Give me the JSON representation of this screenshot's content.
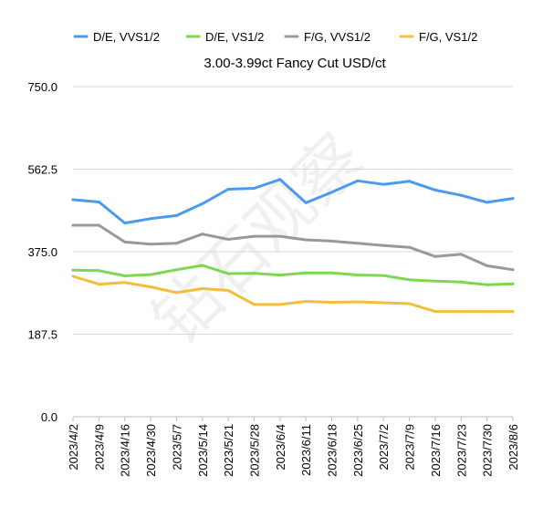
{
  "chart_data": {
    "type": "line",
    "title": "3.00-3.99ct Fancy Cut   USD/ct",
    "watermark": "钻石观察",
    "xlabel": "",
    "ylabel": "",
    "ylim": [
      0,
      750
    ],
    "yticks": [
      "0.0",
      "187.5",
      "375.0",
      "562.5",
      "750.0"
    ],
    "grid": "horizontal",
    "legend_position": "top",
    "categories": [
      "2023/4/2",
      "2023/4/9",
      "2023/4/16",
      "2023/4/30",
      "2023/5/7",
      "2023/5/14",
      "2023/5/21",
      "2023/5/28",
      "2023/6/4",
      "2023/6/11",
      "2023/6/18",
      "2023/6/25",
      "2023/7/2",
      "2023/7/9",
      "2023/7/16",
      "2023/7/23",
      "2023/7/30",
      "2023/8/6"
    ],
    "series": [
      {
        "name": "D/E, VVS1/2",
        "color": "#4a9af0",
        "values": [
          493,
          488,
          440,
          450,
          457,
          484,
          517,
          519,
          539,
          486,
          510,
          536,
          528,
          535,
          515,
          503,
          487,
          496
        ]
      },
      {
        "name": "D/E, VS1/2",
        "color": "#7ed651",
        "values": [
          333,
          332,
          320,
          323,
          334,
          344,
          325,
          326,
          322,
          327,
          327,
          322,
          321,
          311,
          308,
          306,
          300,
          302
        ]
      },
      {
        "name": "F/G, VVS1/2",
        "color": "#999999",
        "values": [
          435,
          435,
          397,
          392,
          394,
          415,
          403,
          410,
          410,
          402,
          399,
          394,
          389,
          385,
          364,
          369,
          343,
          334
        ]
      },
      {
        "name": "F/G, VS1/2",
        "color": "#f4bd3d",
        "values": [
          319,
          301,
          305,
          295,
          282,
          291,
          287,
          255,
          255,
          262,
          260,
          261,
          259,
          257,
          239,
          239,
          239,
          239
        ]
      }
    ]
  }
}
